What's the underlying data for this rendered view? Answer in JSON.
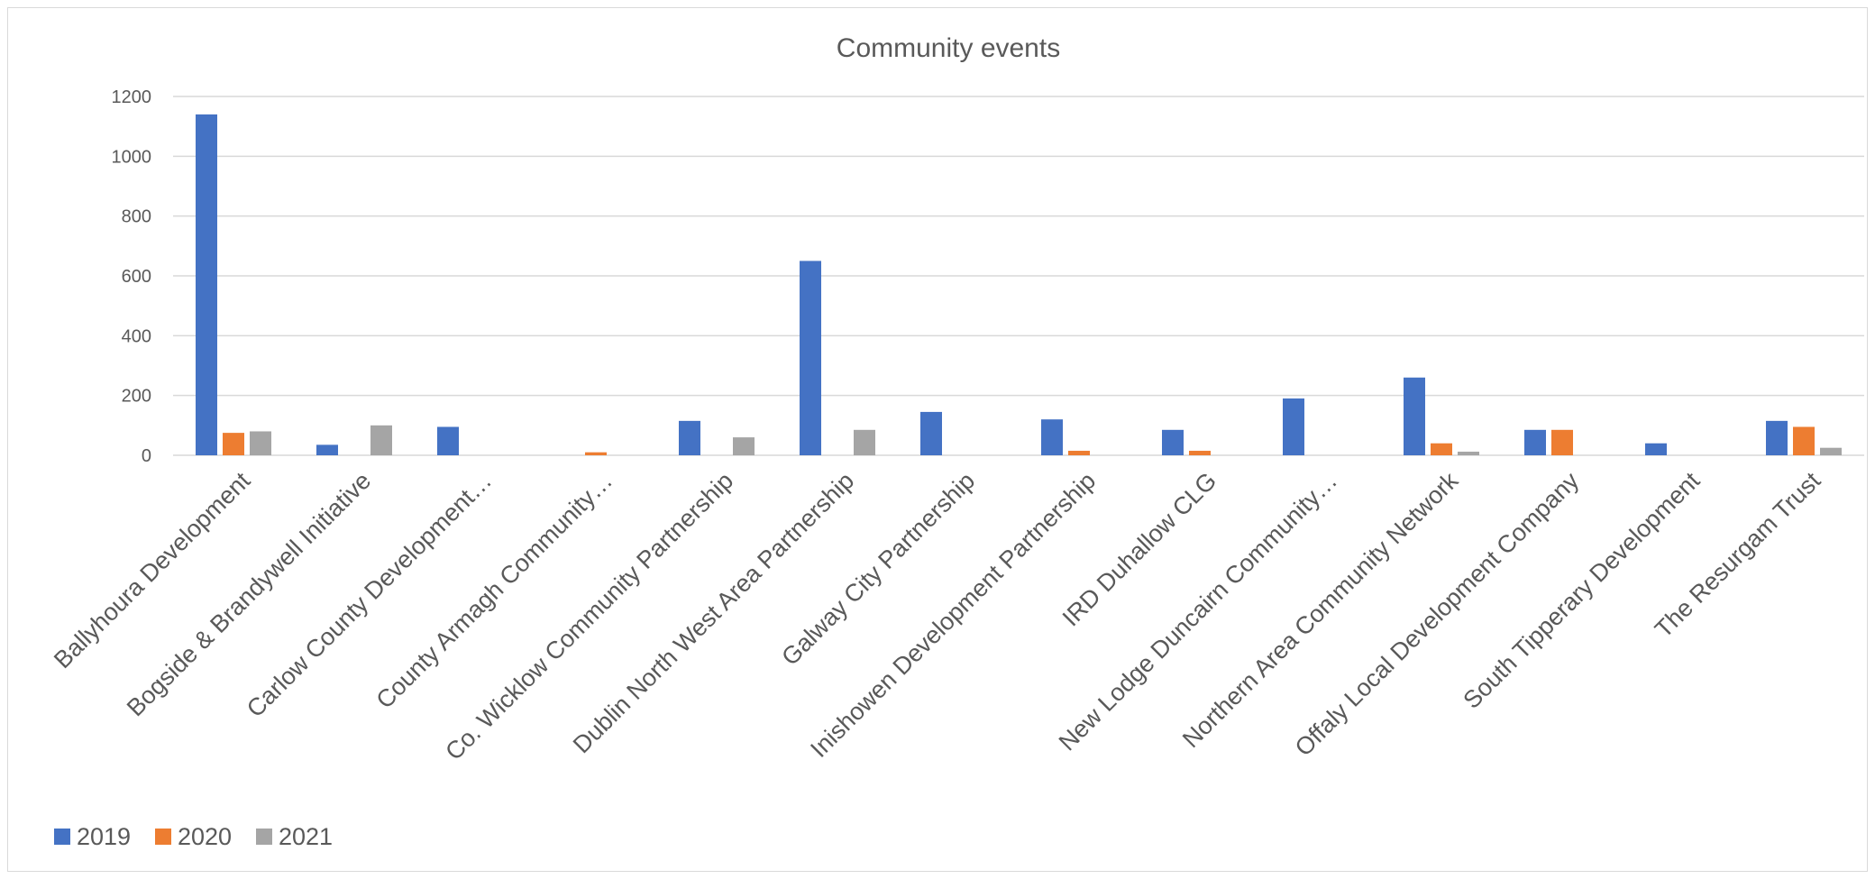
{
  "chart_data": {
    "type": "bar",
    "title": "Community events",
    "xlabel": "",
    "ylabel": "",
    "ylim": [
      0,
      1200
    ],
    "yticks": [
      0,
      200,
      400,
      600,
      800,
      1000,
      1200
    ],
    "grid": true,
    "legend_position": "bottom-left",
    "categories": [
      "Ballyhoura Development",
      "Bogside & Brandywell Initiative",
      "Carlow County Development…",
      "County Armagh Community…",
      "Co. Wicklow Community Partnership",
      "Dublin North West Area Partnership",
      "Galway City Partnership",
      "Inishowen Development Partnership",
      "IRD Duhallow CLG",
      "New Lodge Duncairn Community…",
      "Northern Area Community Network",
      "Offaly Local Development Company",
      "South Tipperary Development",
      "The Resurgam Trust"
    ],
    "series": [
      {
        "name": "2019",
        "color": "#4472c4",
        "values": [
          1140,
          35,
          95,
          0,
          115,
          650,
          145,
          120,
          85,
          190,
          260,
          85,
          40,
          115
        ]
      },
      {
        "name": "2020",
        "color": "#ed7d31",
        "values": [
          75,
          0,
          0,
          10,
          0,
          0,
          0,
          15,
          15,
          0,
          40,
          85,
          0,
          95
        ]
      },
      {
        "name": "2021",
        "color": "#a5a5a5",
        "values": [
          80,
          100,
          0,
          0,
          60,
          85,
          0,
          0,
          0,
          0,
          12,
          0,
          0,
          25
        ]
      }
    ]
  }
}
